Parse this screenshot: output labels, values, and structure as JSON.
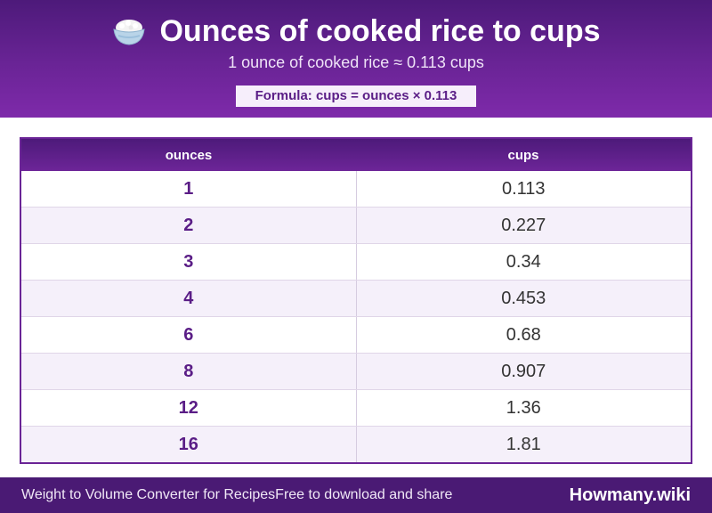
{
  "header": {
    "icon": "rice-bowl-icon",
    "title": "Ounces of cooked rice to cups",
    "subtitle": "1 ounce of cooked rice ≈ 0.113 cups",
    "formula": "Formula: cups = ounces × 0.113"
  },
  "table": {
    "columns": [
      "ounces",
      "cups"
    ],
    "rows": [
      {
        "ounces": "1",
        "cups": "0.113"
      },
      {
        "ounces": "2",
        "cups": "0.227"
      },
      {
        "ounces": "3",
        "cups": "0.34"
      },
      {
        "ounces": "4",
        "cups": "0.453"
      },
      {
        "ounces": "6",
        "cups": "0.68"
      },
      {
        "ounces": "8",
        "cups": "0.907"
      },
      {
        "ounces": "12",
        "cups": "1.36"
      },
      {
        "ounces": "16",
        "cups": "1.81"
      }
    ]
  },
  "footer": {
    "left_text": "Weight to Volume Converter for Recipes",
    "left_subtext": "Free to download and share",
    "brand": "Howmany.wiki"
  },
  "colors": {
    "header": "#6a2496",
    "footer": "#4a1a74",
    "accent_text": "#5a1d86",
    "row_alt": "#f5f0fa"
  }
}
